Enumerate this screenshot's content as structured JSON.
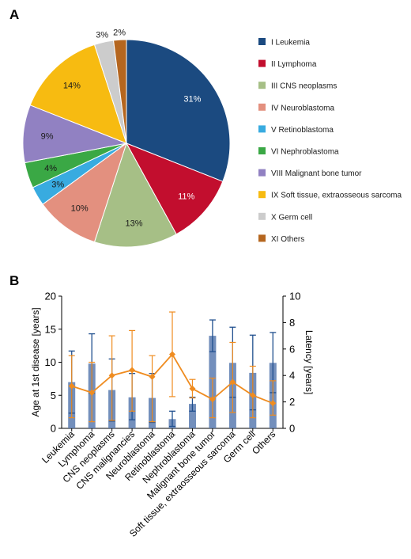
{
  "panels": {
    "a": "A",
    "b": "B"
  },
  "chart_data": [
    {
      "type": "pie",
      "panel": "A",
      "labels": [
        "I Leukemia",
        "II Lymphoma",
        "III CNS neoplasms",
        "IV Neuroblastoma",
        "V Retinoblastoma",
        "VI Nephroblastoma",
        "VIII Malignant bone tumor",
        "IX Soft tissue, extraosseous sarcoma",
        "X Germ cell",
        "XI Others"
      ],
      "values": [
        31,
        11,
        13,
        10,
        3,
        4,
        9,
        14,
        3,
        2
      ],
      "value_labels": [
        "31%",
        "11%",
        "13%",
        "10%",
        "3%",
        "4%",
        "9%",
        "14%",
        "3%",
        "2%"
      ],
      "colors": [
        "#1b4a80",
        "#c20e2e",
        "#a6bf86",
        "#e3907f",
        "#38abe0",
        "#3aa845",
        "#9181c2",
        "#f7bb11",
        "#cccccc",
        "#b5661f"
      ],
      "legend": "right"
    },
    {
      "type": "bar",
      "panel": "B",
      "categories": [
        "Leukemia",
        "Lymphoma",
        "CNS neoplasms",
        "CNS malignancies",
        "Neuroblastoma",
        "Retinoblastoma",
        "Nephroblastoma",
        "Malignant bone tumor",
        "Soft tissue, extraosseous sarcoma",
        "Germ cell",
        "Others"
      ],
      "ylabel": "Age at 1st disease [years]",
      "y2label": "Latency [years]",
      "ylim": [
        0,
        20
      ],
      "y2lim": [
        0,
        10
      ],
      "yticks": [
        "0",
        "5",
        "10",
        "15",
        "20"
      ],
      "y2ticks": [
        "0",
        "2",
        "4",
        "6",
        "8",
        "10"
      ],
      "grid": false,
      "series": [
        {
          "axis": "left",
          "style": "bar-with-error",
          "values": [
            7.0,
            9.8,
            5.8,
            4.7,
            4.6,
            1.4,
            3.7,
            14.0,
            9.9,
            8.4,
            9.9
          ],
          "error_low": [
            2.3,
            5.3,
            1.1,
            1.3,
            0.9,
            0.3,
            2.6,
            11.6,
            4.7,
            2.8,
            5.4
          ],
          "error_high": [
            11.7,
            14.3,
            10.5,
            8.3,
            8.3,
            2.6,
            4.7,
            16.4,
            15.3,
            14.1,
            14.5
          ],
          "color": "#5b7bb0",
          "error_color": "#21508f"
        },
        {
          "axis": "right",
          "style": "line-with-error",
          "values": [
            3.2,
            2.7,
            4.0,
            4.4,
            3.9,
            5.6,
            3.0,
            2.2,
            3.5,
            2.5,
            1.9
          ],
          "error_low": [
            0.8,
            0.5,
            0.6,
            1.3,
            0.5,
            2.4,
            2.3,
            0.8,
            1.2,
            0.8,
            1.0
          ],
          "error_high": [
            5.5,
            5.0,
            7.0,
            7.4,
            5.5,
            8.8,
            3.7,
            3.8,
            6.5,
            4.7,
            3.6
          ],
          "color": "#ef8c20"
        }
      ]
    }
  ]
}
